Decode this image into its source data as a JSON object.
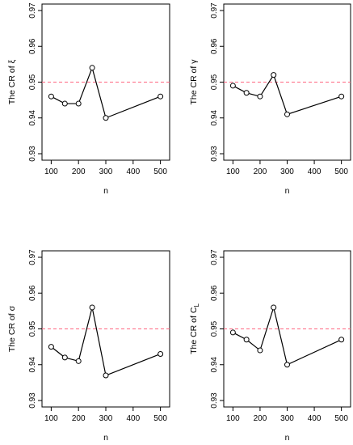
{
  "chart_data": [
    {
      "type": "line",
      "ylabel": "The CR of ξ",
      "xlabel": "n",
      "x": [
        100,
        150,
        200,
        250,
        300,
        500
      ],
      "values": [
        0.946,
        0.944,
        0.944,
        0.954,
        0.94,
        0.946
      ],
      "reference_line": 0.95,
      "xlim": [
        90,
        510
      ],
      "ylim": [
        0.93,
        0.97
      ],
      "xticks": [
        100,
        200,
        300,
        400,
        500
      ],
      "yticks": [
        0.93,
        0.94,
        0.95,
        0.96,
        0.97
      ],
      "ytick_labels": [
        "0.93",
        "0.94",
        "0.95",
        "0.96",
        "0.97"
      ],
      "grid": false
    },
    {
      "type": "line",
      "ylabel": "The CR of γ",
      "xlabel": "n",
      "x": [
        100,
        150,
        200,
        250,
        300,
        500
      ],
      "values": [
        0.949,
        0.947,
        0.946,
        0.952,
        0.941,
        0.946
      ],
      "reference_line": 0.95,
      "xlim": [
        90,
        510
      ],
      "ylim": [
        0.93,
        0.97
      ],
      "xticks": [
        100,
        200,
        300,
        400,
        500
      ],
      "yticks": [
        0.93,
        0.94,
        0.95,
        0.96,
        0.97
      ],
      "ytick_labels": [
        "0.93",
        "0.94",
        "0.95",
        "0.96",
        "0.97"
      ],
      "grid": false
    },
    {
      "type": "line",
      "ylabel": "The CR of σ",
      "xlabel": "n",
      "x": [
        100,
        150,
        200,
        250,
        300,
        500
      ],
      "values": [
        0.945,
        0.942,
        0.941,
        0.956,
        0.937,
        0.943
      ],
      "reference_line": 0.95,
      "xlim": [
        90,
        510
      ],
      "ylim": [
        0.93,
        0.97
      ],
      "xticks": [
        100,
        200,
        300,
        400,
        500
      ],
      "yticks": [
        0.93,
        0.94,
        0.95,
        0.96,
        0.97
      ],
      "ytick_labels": [
        "0.93",
        "0.94",
        "0.95",
        "0.96",
        "0.97"
      ],
      "grid": false
    },
    {
      "type": "line",
      "ylabel": "The CR of C",
      "ylabel_subscript": "L",
      "xlabel": "n",
      "x": [
        100,
        150,
        200,
        250,
        300,
        500
      ],
      "values": [
        0.949,
        0.947,
        0.944,
        0.956,
        0.94,
        0.947
      ],
      "reference_line": 0.95,
      "xlim": [
        90,
        510
      ],
      "ylim": [
        0.93,
        0.97
      ],
      "xticks": [
        100,
        200,
        300,
        400,
        500
      ],
      "yticks": [
        0.93,
        0.94,
        0.95,
        0.96,
        0.97
      ],
      "ytick_labels": [
        "0.93",
        "0.94",
        "0.95",
        "0.96",
        "0.97"
      ],
      "grid": false
    }
  ],
  "colors": {
    "line": "#000000",
    "reference_line": "#ff6680",
    "marker_stroke": "#000000",
    "marker_fill": "#ffffff"
  }
}
